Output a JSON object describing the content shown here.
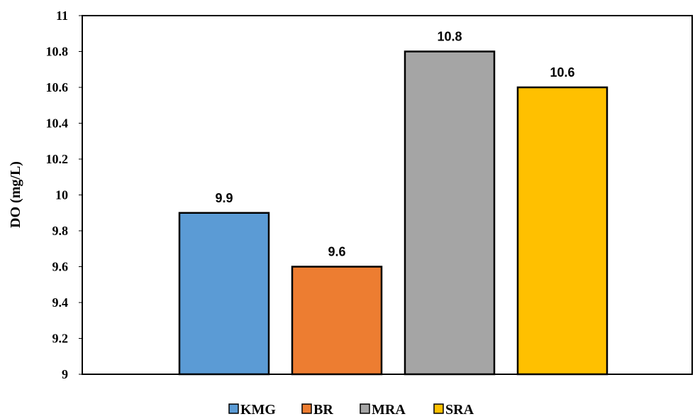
{
  "chart_data": {
    "type": "bar",
    "categories": [
      "KMG",
      "BR",
      "MRA",
      "SRA"
    ],
    "values": [
      9.9,
      9.6,
      10.8,
      10.6
    ],
    "data_labels": [
      "9.9",
      "9.6",
      "10.8",
      "10.6"
    ],
    "colors": [
      "#5B9BD5",
      "#ED7D31",
      "#A5A5A5",
      "#FFC000"
    ],
    "title": "",
    "xlabel": "",
    "ylabel": "DO (mg/L)",
    "ylim": [
      9,
      11
    ],
    "yticks": [
      9,
      9.2,
      9.4,
      9.6,
      9.8,
      10,
      10.2,
      10.4,
      10.6,
      10.8,
      11
    ],
    "ytick_labels": [
      "9",
      "9.2",
      "9.4",
      "9.6",
      "9.8",
      "10",
      "10.2",
      "10.4",
      "10.6",
      "10.8",
      "11"
    ],
    "grid": false,
    "legend": {
      "placement": "bottom-center",
      "entries": [
        "KMG",
        "BR",
        "MRA",
        "SRA"
      ]
    }
  }
}
